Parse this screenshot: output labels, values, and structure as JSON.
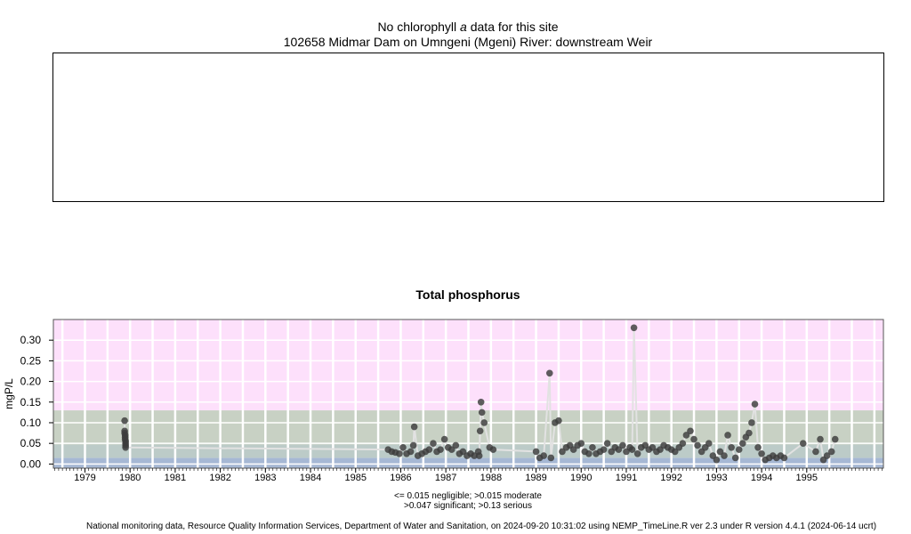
{
  "chla": {
    "title_pre": "No chlorophyll",
    "title_a": "a",
    "title_post": "data for this site",
    "site": "102658 Midmar Dam on Umngeni (Mgeni) River: downstream Weir"
  },
  "legend_line1": "<= 0.015 negligible; >0.015 moderate",
  "legend_line2": ">0.047 significant; >0.13 serious",
  "footer": "National monitoring data, Resource Quality Information Services, Department of Water and Sanitation, on 2024-09-20 10:31:02 using NEMP_TimeLine.R ver 2.3 under R version 4.4.1 (2024-06-14 ucrt)",
  "colors": {
    "serious": "#fde0fb",
    "significant": "#c8d1c4",
    "moderate": "#bccbc8",
    "negligible": "#a6b8d4",
    "points": "#3c3c3c",
    "line": "#e2e2e2"
  },
  "chart_data": {
    "type": "scatter",
    "title": "Total phosphorus",
    "ylabel": "mgP/L",
    "xlim": [
      1978.3,
      1996.7
    ],
    "ylim": [
      -0.01,
      0.35
    ],
    "yticks": [
      0.0,
      0.05,
      0.1,
      0.15,
      0.2,
      0.25,
      0.3
    ],
    "ytick_labels": [
      "0.00",
      "0.05",
      "0.10",
      "0.15",
      "0.20",
      "0.25",
      "0.30"
    ],
    "xticks": [
      1979,
      1980,
      1981,
      1982,
      1983,
      1984,
      1985,
      1986,
      1987,
      1988,
      1989,
      1990,
      1991,
      1992,
      1993,
      1994,
      1995
    ],
    "thresholds": [
      {
        "name": "negligible",
        "max": 0.015
      },
      {
        "name": "moderate",
        "max": 0.047
      },
      {
        "name": "significant",
        "max": 0.13
      },
      {
        "name": "serious",
        "max": null
      }
    ],
    "grid": true,
    "x": [
      1979.88,
      1979.88,
      1979.88,
      1979.89,
      1979.89,
      1979.89,
      1979.9,
      1979.9,
      1979.9,
      1979.9,
      1985.72,
      1985.8,
      1985.88,
      1985.97,
      1986.05,
      1986.13,
      1986.22,
      1986.28,
      1986.3,
      1986.38,
      1986.47,
      1986.55,
      1986.63,
      1986.72,
      1986.8,
      1986.88,
      1986.97,
      1987.05,
      1987.13,
      1987.22,
      1987.3,
      1987.38,
      1987.47,
      1987.55,
      1987.63,
      1987.72,
      1987.74,
      1987.76,
      1987.78,
      1987.8,
      1987.85,
      1987.97,
      1988.05,
      1989.0,
      1989.08,
      1989.17,
      1989.3,
      1989.33,
      1989.42,
      1989.5,
      1989.58,
      1989.67,
      1989.75,
      1989.83,
      1989.92,
      1990.0,
      1990.08,
      1990.17,
      1990.25,
      1990.33,
      1990.42,
      1990.5,
      1990.58,
      1990.67,
      1990.75,
      1990.83,
      1990.92,
      1991.0,
      1991.08,
      1991.13,
      1991.17,
      1991.25,
      1991.33,
      1991.42,
      1991.5,
      1991.58,
      1991.67,
      1991.75,
      1991.83,
      1991.92,
      1992.0,
      1992.08,
      1992.17,
      1992.25,
      1992.33,
      1992.42,
      1992.5,
      1992.58,
      1992.67,
      1992.75,
      1992.83,
      1992.92,
      1993.0,
      1993.08,
      1993.17,
      1993.25,
      1993.33,
      1993.42,
      1993.5,
      1993.58,
      1993.65,
      1993.72,
      1993.78,
      1993.85,
      1993.92,
      1994.0,
      1994.08,
      1994.17,
      1994.25,
      1994.33,
      1994.42,
      1994.5,
      1994.92,
      1995.2,
      1995.3,
      1995.37,
      1995.45,
      1995.55,
      1995.63
    ],
    "y": [
      0.105,
      0.08,
      0.075,
      0.07,
      0.065,
      0.06,
      0.055,
      0.05,
      0.045,
      0.04,
      0.035,
      0.03,
      0.028,
      0.025,
      0.04,
      0.025,
      0.03,
      0.045,
      0.09,
      0.02,
      0.025,
      0.03,
      0.035,
      0.05,
      0.03,
      0.035,
      0.06,
      0.04,
      0.035,
      0.045,
      0.025,
      0.03,
      0.02,
      0.025,
      0.02,
      0.03,
      0.02,
      0.08,
      0.15,
      0.125,
      0.1,
      0.04,
      0.035,
      0.03,
      0.015,
      0.02,
      0.22,
      0.015,
      0.1,
      0.105,
      0.03,
      0.04,
      0.045,
      0.035,
      0.045,
      0.05,
      0.03,
      0.025,
      0.04,
      0.025,
      0.03,
      0.035,
      0.05,
      0.03,
      0.04,
      0.035,
      0.045,
      0.03,
      0.04,
      0.035,
      0.33,
      0.025,
      0.04,
      0.045,
      0.035,
      0.04,
      0.03,
      0.035,
      0.045,
      0.04,
      0.035,
      0.03,
      0.04,
      0.05,
      0.07,
      0.08,
      0.06,
      0.045,
      0.03,
      0.04,
      0.05,
      0.02,
      0.01,
      0.03,
      0.02,
      0.07,
      0.04,
      0.015,
      0.035,
      0.05,
      0.065,
      0.075,
      0.1,
      0.145,
      0.04,
      0.025,
      0.01,
      0.015,
      0.02,
      0.015,
      0.02,
      0.015,
      0.05,
      0.03,
      0.06,
      0.01,
      0.02,
      0.03,
      0.06
    ]
  }
}
